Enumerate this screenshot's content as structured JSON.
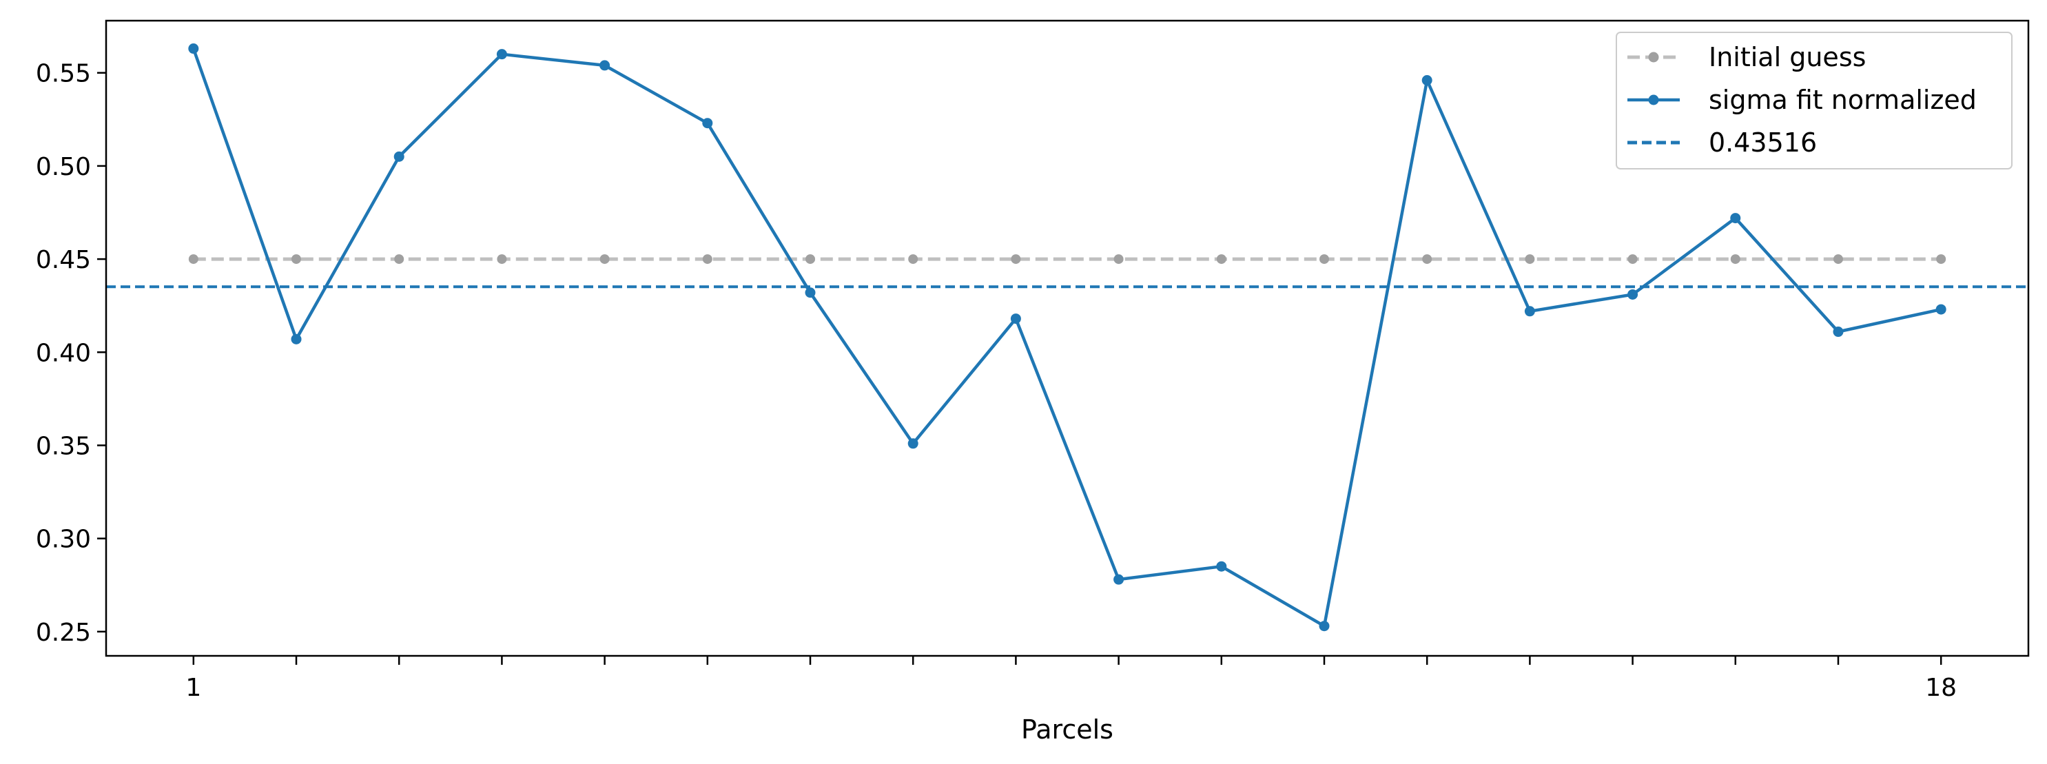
{
  "chart_data": {
    "type": "line",
    "title": "",
    "xlabel": "Parcels",
    "ylabel": "",
    "x": [
      1,
      2,
      3,
      4,
      5,
      6,
      7,
      8,
      9,
      10,
      11,
      12,
      13,
      14,
      15,
      16,
      17,
      18
    ],
    "x_tick_labels": [
      "1",
      "",
      "",
      "",
      "",
      "",
      "",
      "",
      "",
      "",
      "",
      "",
      "",
      "",
      "",
      "",
      "",
      "18"
    ],
    "xlim": [
      0.15,
      18.85
    ],
    "ylim": [
      0.237,
      0.578
    ],
    "y_ticks": [
      0.25,
      0.3,
      0.35,
      0.4,
      0.45,
      0.5,
      0.55
    ],
    "y_tick_labels": [
      "0.25",
      "0.30",
      "0.35",
      "0.40",
      "0.45",
      "0.50",
      "0.55"
    ],
    "grid": false,
    "legend_position": "top-right",
    "series": [
      {
        "name": "Initial guess",
        "style": "dashed-markers",
        "color": "#bfbfbf",
        "marker_color": "#a0a0a0",
        "values": [
          0.45,
          0.45,
          0.45,
          0.45,
          0.45,
          0.45,
          0.45,
          0.45,
          0.45,
          0.45,
          0.45,
          0.45,
          0.45,
          0.45,
          0.45,
          0.45,
          0.45,
          0.45
        ]
      },
      {
        "name": "sigma fit normalized",
        "style": "solid-markers",
        "color": "#1f77b4",
        "marker_color": "#1f77b4",
        "values": [
          0.563,
          0.407,
          0.505,
          0.56,
          0.554,
          0.523,
          0.432,
          0.351,
          0.418,
          0.278,
          0.285,
          0.253,
          0.546,
          0.422,
          0.431,
          0.472,
          0.411,
          0.423
        ]
      }
    ],
    "hlines": [
      {
        "name": "0.43516",
        "value": 0.43516,
        "style": "dashed",
        "color": "#1f77b4"
      }
    ]
  }
}
